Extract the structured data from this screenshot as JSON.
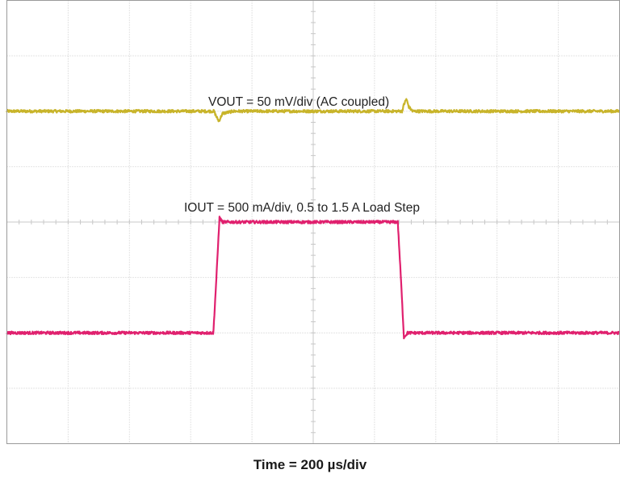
{
  "chart_data": {
    "type": "line",
    "title": "",
    "xlabel": "Time = 200 µs/div",
    "ylabel": "",
    "grid": true,
    "grid_divisions": {
      "x": 10,
      "y": 8
    },
    "x_unit": "div",
    "y_unit": "div",
    "xlim": [
      0,
      10
    ],
    "ylim": [
      -4,
      4
    ],
    "annotations": [
      "VOUT = 50 mV/div (AC coupled)",
      "IOUT = 500 mA/div, 0.5 to 1.5 A Load Step"
    ],
    "series": [
      {
        "color": "#c8b42a",
        "x": [
          0,
          3.38,
          3.42,
          3.46,
          3.52,
          3.7,
          6.45,
          6.48,
          6.52,
          6.56,
          6.62,
          10
        ],
        "y": [
          2.0,
          2.0,
          1.9,
          1.82,
          1.96,
          2.0,
          2.0,
          2.12,
          2.22,
          2.08,
          2.0,
          2.0
        ]
      },
      {
        "color": "#e0206e",
        "x": [
          0,
          3.37,
          3.42,
          3.47,
          3.52,
          6.38,
          6.43,
          6.48,
          6.54,
          10
        ],
        "y": [
          -2.0,
          -2.0,
          -1.0,
          0.08,
          0.0,
          0.0,
          -1.0,
          -2.08,
          -2.0,
          -2.0
        ]
      }
    ]
  },
  "colors": {
    "grid": "#c8c8c8",
    "frame": "#9a9a9a"
  }
}
